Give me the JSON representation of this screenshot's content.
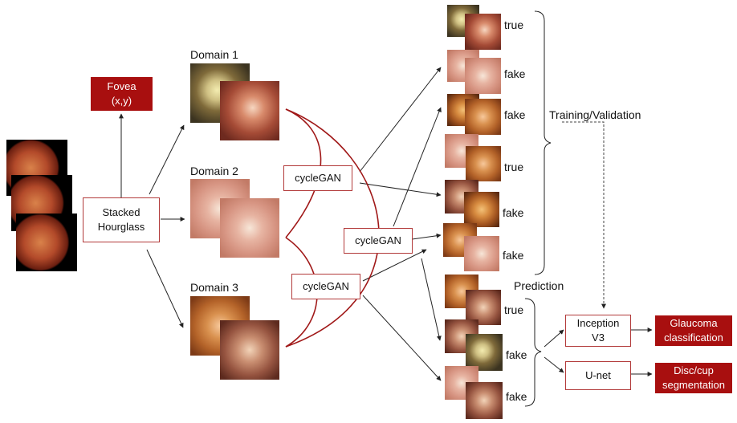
{
  "boxes": {
    "stacked_hourglass": "Stacked\nHourglass",
    "fovea": "Fovea\n(x,y)",
    "cyclegan_top": "cycleGAN",
    "cyclegan_middle": "cycleGAN",
    "cyclegan_bottom": "cycleGAN",
    "inception": "Inception\nV3",
    "unet": "U-net",
    "glaucoma": "Glaucoma\nclassification",
    "disc_cup": "Disc/cup\nsegmentation"
  },
  "labels": {
    "domain1": "Domain 1",
    "domain2": "Domain 2",
    "domain3": "Domain 3",
    "training_validation": "Training/Validation",
    "prediction": "Prediction"
  },
  "pair_labels": [
    "true",
    "fake",
    "fake",
    "true",
    "fake",
    "fake",
    "true",
    "fake",
    "fake"
  ],
  "colors": {
    "accent_red": "#a80f0f",
    "curve_red": "#a01818",
    "arrow": "#222222"
  }
}
